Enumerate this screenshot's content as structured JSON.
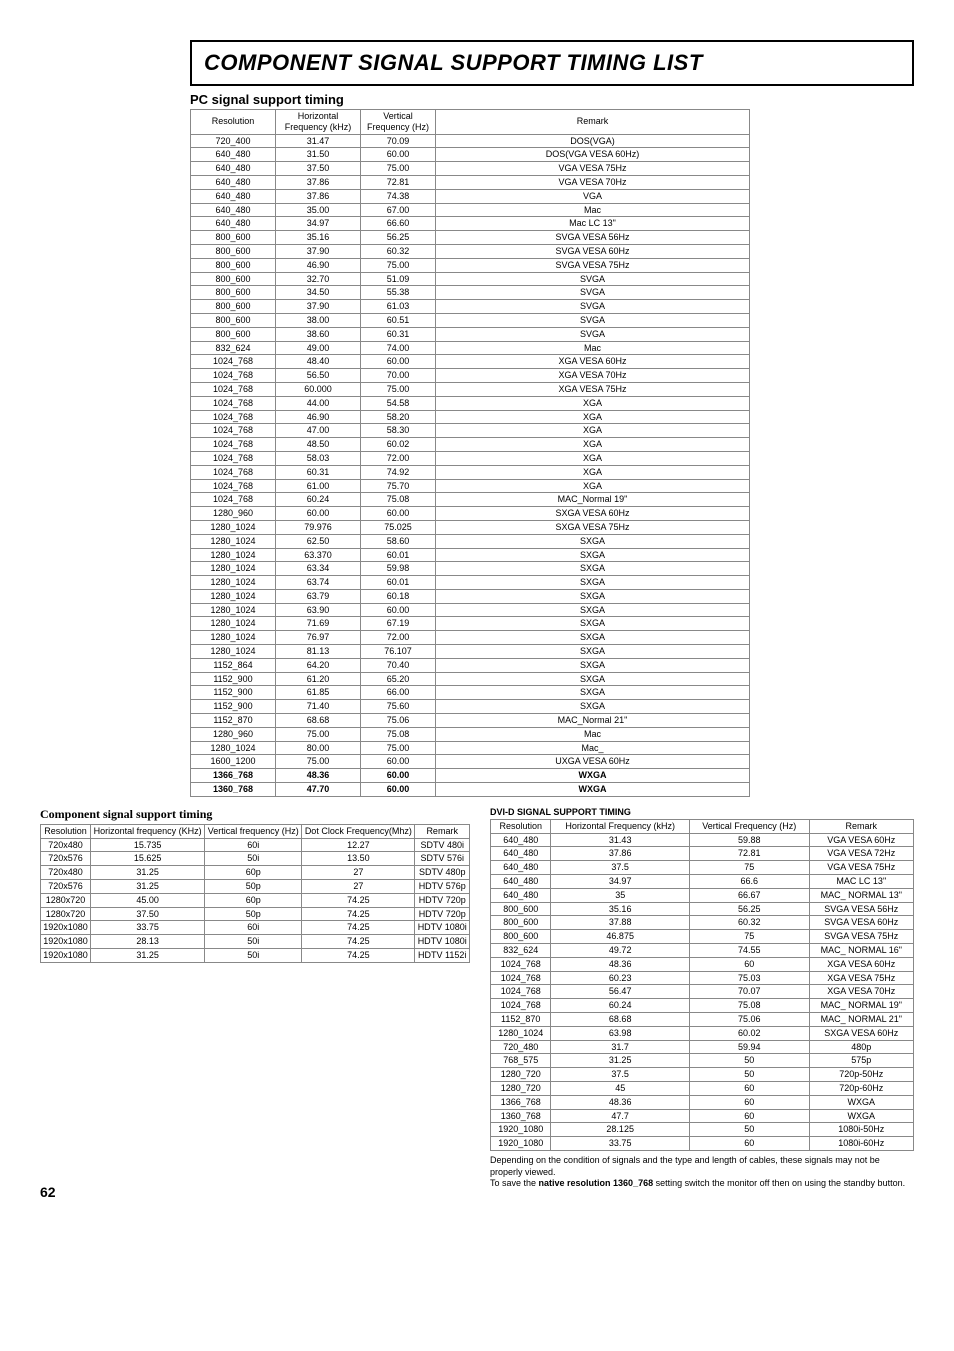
{
  "title": "COMPONENT SIGNAL SUPPORT TIMING LIST",
  "page_number": "62",
  "pc_table": {
    "heading": "PC signal support timing",
    "headers": [
      "Resolution",
      "Horizontal Frequency (kHz)",
      "Vertical Frequency (Hz)",
      "Remark"
    ],
    "col_widths": [
      "80px",
      "80px",
      "70px",
      "auto"
    ],
    "rows": [
      [
        "720_400",
        "31.47",
        "70.09",
        "DOS(VGA)"
      ],
      [
        "640_480",
        "31.50",
        "60.00",
        "DOS(VGA VESA 60Hz)"
      ],
      [
        "640_480",
        "37.50",
        "75.00",
        "VGA VESA 75Hz"
      ],
      [
        "640_480",
        "37.86",
        "72.81",
        "VGA VESA 70Hz"
      ],
      [
        "640_480",
        "37.86",
        "74.38",
        "VGA"
      ],
      [
        "640_480",
        "35.00",
        "67.00",
        "Mac"
      ],
      [
        "640_480",
        "34.97",
        "66.60",
        "Mac LC 13\""
      ],
      [
        "800_600",
        "35.16",
        "56.25",
        "SVGA VESA 56Hz"
      ],
      [
        "800_600",
        "37.90",
        "60.32",
        "SVGA VESA 60Hz"
      ],
      [
        "800_600",
        "46.90",
        "75.00",
        "SVGA VESA 75Hz"
      ],
      [
        "800_600",
        "32.70",
        "51.09",
        "SVGA"
      ],
      [
        "800_600",
        "34.50",
        "55.38",
        "SVGA"
      ],
      [
        "800_600",
        "37.90",
        "61.03",
        "SVGA"
      ],
      [
        "800_600",
        "38.00",
        "60.51",
        "SVGA"
      ],
      [
        "800_600",
        "38.60",
        "60.31",
        "SVGA"
      ],
      [
        "832_624",
        "49.00",
        "74.00",
        "Mac"
      ],
      [
        "1024_768",
        "48.40",
        "60.00",
        "XGA VESA 60Hz"
      ],
      [
        "1024_768",
        "56.50",
        "70.00",
        "XGA VESA 70Hz"
      ],
      [
        "1024_768",
        "60.000",
        "75.00",
        "XGA VESA 75Hz"
      ],
      [
        "1024_768",
        "44.00",
        "54.58",
        "XGA"
      ],
      [
        "1024_768",
        "46.90",
        "58.20",
        "XGA"
      ],
      [
        "1024_768",
        "47.00",
        "58.30",
        "XGA"
      ],
      [
        "1024_768",
        "48.50",
        "60.02",
        "XGA"
      ],
      [
        "1024_768",
        "58.03",
        "72.00",
        "XGA"
      ],
      [
        "1024_768",
        "60.31",
        "74.92",
        "XGA"
      ],
      [
        "1024_768",
        "61.00",
        "75.70",
        "XGA"
      ],
      [
        "1024_768",
        "60.24",
        "75.08",
        "MAC_Normal 19\""
      ],
      [
        "1280_960",
        "60.00",
        "60.00",
        "SXGA VESA 60Hz"
      ],
      [
        "1280_1024",
        "79.976",
        "75.025",
        "SXGA VESA 75Hz"
      ],
      [
        "1280_1024",
        "62.50",
        "58.60",
        "SXGA"
      ],
      [
        "1280_1024",
        "63.370",
        "60.01",
        "SXGA"
      ],
      [
        "1280_1024",
        "63.34",
        "59.98",
        "SXGA"
      ],
      [
        "1280_1024",
        "63.74",
        "60.01",
        "SXGA"
      ],
      [
        "1280_1024",
        "63.79",
        "60.18",
        "SXGA"
      ],
      [
        "1280_1024",
        "63.90",
        "60.00",
        "SXGA"
      ],
      [
        "1280_1024",
        "71.69",
        "67.19",
        "SXGA"
      ],
      [
        "1280_1024",
        "76.97",
        "72.00",
        "SXGA"
      ],
      [
        "1280_1024",
        "81.13",
        "76.107",
        "SXGA"
      ],
      [
        "1152_864",
        "64.20",
        "70.40",
        "SXGA"
      ],
      [
        "1152_900",
        "61.20",
        "65.20",
        "SXGA"
      ],
      [
        "1152_900",
        "61.85",
        "66.00",
        "SXGA"
      ],
      [
        "1152_900",
        "71.40",
        "75.60",
        "SXGA"
      ],
      [
        "1152_870",
        "68.68",
        "75.06",
        "MAC_Normal 21\""
      ],
      [
        "1280_960",
        "75.00",
        "75.08",
        "Mac"
      ],
      [
        "1280_1024",
        "80.00",
        "75.00",
        "Mac_"
      ],
      [
        "1600_1200",
        "75.00",
        "60.00",
        "UXGA VESA 60Hz"
      ]
    ],
    "bold_rows": [
      [
        "1366_768",
        "48.36",
        "60.00",
        "WXGA"
      ],
      [
        "1360_768",
        "47.70",
        "60.00",
        "WXGA"
      ]
    ]
  },
  "comp_table": {
    "heading": "Component signal support timing",
    "headers": [
      "Resolution",
      "Horizontal frequency (KHz)",
      "Vertical frequency (Hz)",
      "Dot Clock Frequency(Mhz)",
      "Remark"
    ],
    "rows": [
      [
        "720x480",
        "15.735",
        "60i",
        "12.27",
        "SDTV 480i"
      ],
      [
        "720x576",
        "15.625",
        "50i",
        "13.50",
        "SDTV 576i"
      ],
      [
        "720x480",
        "31.25",
        "60p",
        "27",
        "SDTV 480p"
      ],
      [
        "720x576",
        "31.25",
        "50p",
        "27",
        "HDTV 576p"
      ],
      [
        "1280x720",
        "45.00",
        "60p",
        "74.25",
        "HDTV 720p"
      ],
      [
        "1280x720",
        "37.50",
        "50p",
        "74.25",
        "HDTV 720p"
      ],
      [
        "1920x1080",
        "33.75",
        "60i",
        "74.25",
        "HDTV 1080i"
      ],
      [
        "1920x1080",
        "28.13",
        "50i",
        "74.25",
        "HDTV 1080i"
      ],
      [
        "1920x1080",
        "31.25",
        "50i",
        "74.25",
        "HDTV 1152i"
      ]
    ]
  },
  "dvi_table": {
    "heading": "DVI-D SIGNAL SUPPORT TIMING",
    "headers": [
      "Resolution",
      "Horizontal Frequency (kHz)",
      "Vertical Frequency (Hz)",
      "Remark"
    ],
    "rows": [
      [
        "640_480",
        "31.43",
        "59.88",
        "VGA VESA 60Hz"
      ],
      [
        "640_480",
        "37.86",
        "72.81",
        "VGA VESA 72Hz"
      ],
      [
        "640_480",
        "37.5",
        "75",
        "VGA VESA 75Hz"
      ],
      [
        "640_480",
        "34.97",
        "66.6",
        "MAC LC 13\""
      ],
      [
        "640_480",
        "35",
        "66.67",
        "MAC_ NORMAL 13\""
      ],
      [
        "800_600",
        "35.16",
        "56.25",
        "SVGA VESA 56Hz"
      ],
      [
        "800_600",
        "37.88",
        "60.32",
        "SVGA VESA 60Hz"
      ],
      [
        "800_600",
        "46.875",
        "75",
        "SVGA VESA 75Hz"
      ],
      [
        "832_624",
        "49.72",
        "74.55",
        "MAC_ NORMAL 16\""
      ],
      [
        "1024_768",
        "48.36",
        "60",
        "XGA VESA 60Hz"
      ],
      [
        "1024_768",
        "60.23",
        "75.03",
        "XGA VESA 75Hz"
      ],
      [
        "1024_768",
        "56.47",
        "70.07",
        "XGA VESA 70Hz"
      ],
      [
        "1024_768",
        "60.24",
        "75.08",
        "MAC_ NORMAL 19\""
      ],
      [
        "1152_870",
        "68.68",
        "75.06",
        "MAC_ NORMAL 21\""
      ],
      [
        "1280_1024",
        "63.98",
        "60.02",
        "SXGA VESA 60Hz"
      ],
      [
        "720_480",
        "31.7",
        "59.94",
        "480p"
      ],
      [
        "768_575",
        "31.25",
        "50",
        "575p"
      ],
      [
        "1280_720",
        "37.5",
        "50",
        "720p-50Hz"
      ],
      [
        "1280_720",
        "45",
        "60",
        "720p-60Hz"
      ],
      [
        "1366_768",
        "48.36",
        "60",
        "WXGA"
      ],
      [
        "1360_768",
        "47.7",
        "60",
        "WXGA"
      ],
      [
        "1920_1080",
        "28.125",
        "50",
        "1080i-50Hz"
      ],
      [
        "1920_1080",
        "33.75",
        "60",
        "1080i-60Hz"
      ]
    ],
    "footnote_line1": "Depending on the condition of signals and the type and length of cables, these signals may not be properly viewed.",
    "footnote_line2_a": "To save the ",
    "footnote_line2_bold": "native resolution 1360_768",
    "footnote_line2_b": " setting switch the monitor off then on using the standby button."
  }
}
